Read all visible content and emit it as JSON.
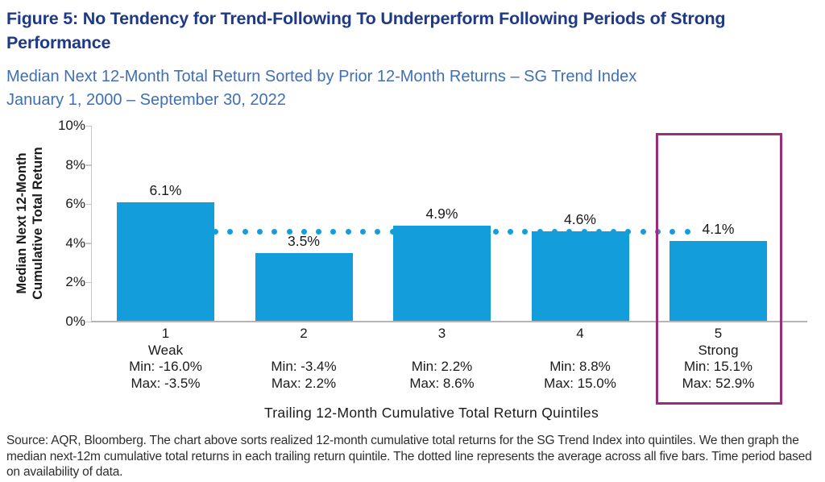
{
  "figure": {
    "title": "Figure 5: No Tendency for Trend-Following To Underperform Following Periods of Strong Performance",
    "subtitle_line1": "Median Next 12-Month Total Return Sorted by Prior 12-Month Returns – SG Trend Index",
    "subtitle_line2": "January 1, 2000 – September 30, 2022",
    "source": "Source: AQR, Bloomberg. The chart above sorts realized 12-month cumulative total returns for the SG Trend Index into quintiles. We then graph the median next-12m cumulative total returns in each trailing return quintile. The dotted line represents the average across all five bars. Time period based on availability of data."
  },
  "colors": {
    "bar": "#149DDB",
    "dotted_line": "#149DDB",
    "highlight_box": "#9B2D7E",
    "title": "#1E3A87",
    "subtitle": "#3F6FB5"
  },
  "chart_data": {
    "type": "bar",
    "title": "Median Next 12-Month Total Return Sorted by Prior 12-Month Returns – SG Trend Index, January 1, 2000 – September 30, 2022",
    "ylabel_line1": "Median Next 12-Month",
    "ylabel_line2": "Cumulative Total Return",
    "xlabel": "Trailing 12-Month Cumulative Total Return Quintiles",
    "ylim": [
      0,
      10
    ],
    "yticks": [
      "0%",
      "2%",
      "4%",
      "6%",
      "8%",
      "10%"
    ],
    "average_line_value": 4.6,
    "values": [
      6.1,
      3.5,
      4.9,
      4.6,
      4.1
    ],
    "value_labels": [
      "6.1%",
      "3.5%",
      "4.9%",
      "4.6%",
      "4.1%"
    ],
    "categories": [
      {
        "num": "1",
        "tag": "Weak",
        "min": "Min: -16.0%",
        "max": "Max: -3.5%",
        "highlight": false
      },
      {
        "num": "2",
        "tag": "",
        "min": "Min: -3.4%",
        "max": "Max: 2.2%",
        "highlight": false
      },
      {
        "num": "3",
        "tag": "",
        "min": "Min: 2.2%",
        "max": "Max: 8.6%",
        "highlight": false
      },
      {
        "num": "4",
        "tag": "",
        "min": "Min: 8.8%",
        "max": "Max: 15.0%",
        "highlight": false
      },
      {
        "num": "5",
        "tag": "Strong",
        "min": "Min: 15.1%",
        "max": "Max: 52.9%",
        "highlight": true
      }
    ],
    "legend": null,
    "grid": false,
    "notes": "Dotted line represents the average (4.6%) across all five bars; magenta box highlights quintile 5 (Strong)."
  }
}
